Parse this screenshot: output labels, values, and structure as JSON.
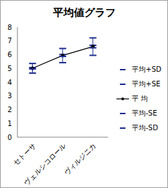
{
  "chart_data": {
    "type": "line",
    "title": "平均値グラフ",
    "categories": [
      "セトーサ",
      "ヴェルシコロール",
      "ヴィルジニカ"
    ],
    "ylim": [
      0,
      8
    ],
    "yticks": [
      0,
      1,
      2,
      3,
      4,
      5,
      6,
      7,
      8
    ],
    "grid": false,
    "legend": "right",
    "series": [
      {
        "name": "平均+SD",
        "color": "#1f2f8f",
        "marker": "dash",
        "line_style": "none",
        "values": [
          5.36,
          6.45,
          7.22
        ]
      },
      {
        "name": "平均+SE",
        "color": "#1f2f8f",
        "marker": "dash",
        "line_style": "none",
        "values": [
          5.06,
          6.01,
          6.68
        ]
      },
      {
        "name": "平 均",
        "color": "#000000",
        "marker": "circle",
        "line_style": "solid",
        "values": [
          5.01,
          5.94,
          6.59
        ]
      },
      {
        "name": "平均-SE",
        "color": "#1f2f8f",
        "marker": "dash",
        "line_style": "none",
        "values": [
          4.96,
          5.87,
          6.5
        ]
      },
      {
        "name": "平均-SD",
        "color": "#1f2f8f",
        "marker": "dash",
        "line_style": "none",
        "values": [
          4.66,
          5.42,
          5.95
        ]
      }
    ]
  }
}
